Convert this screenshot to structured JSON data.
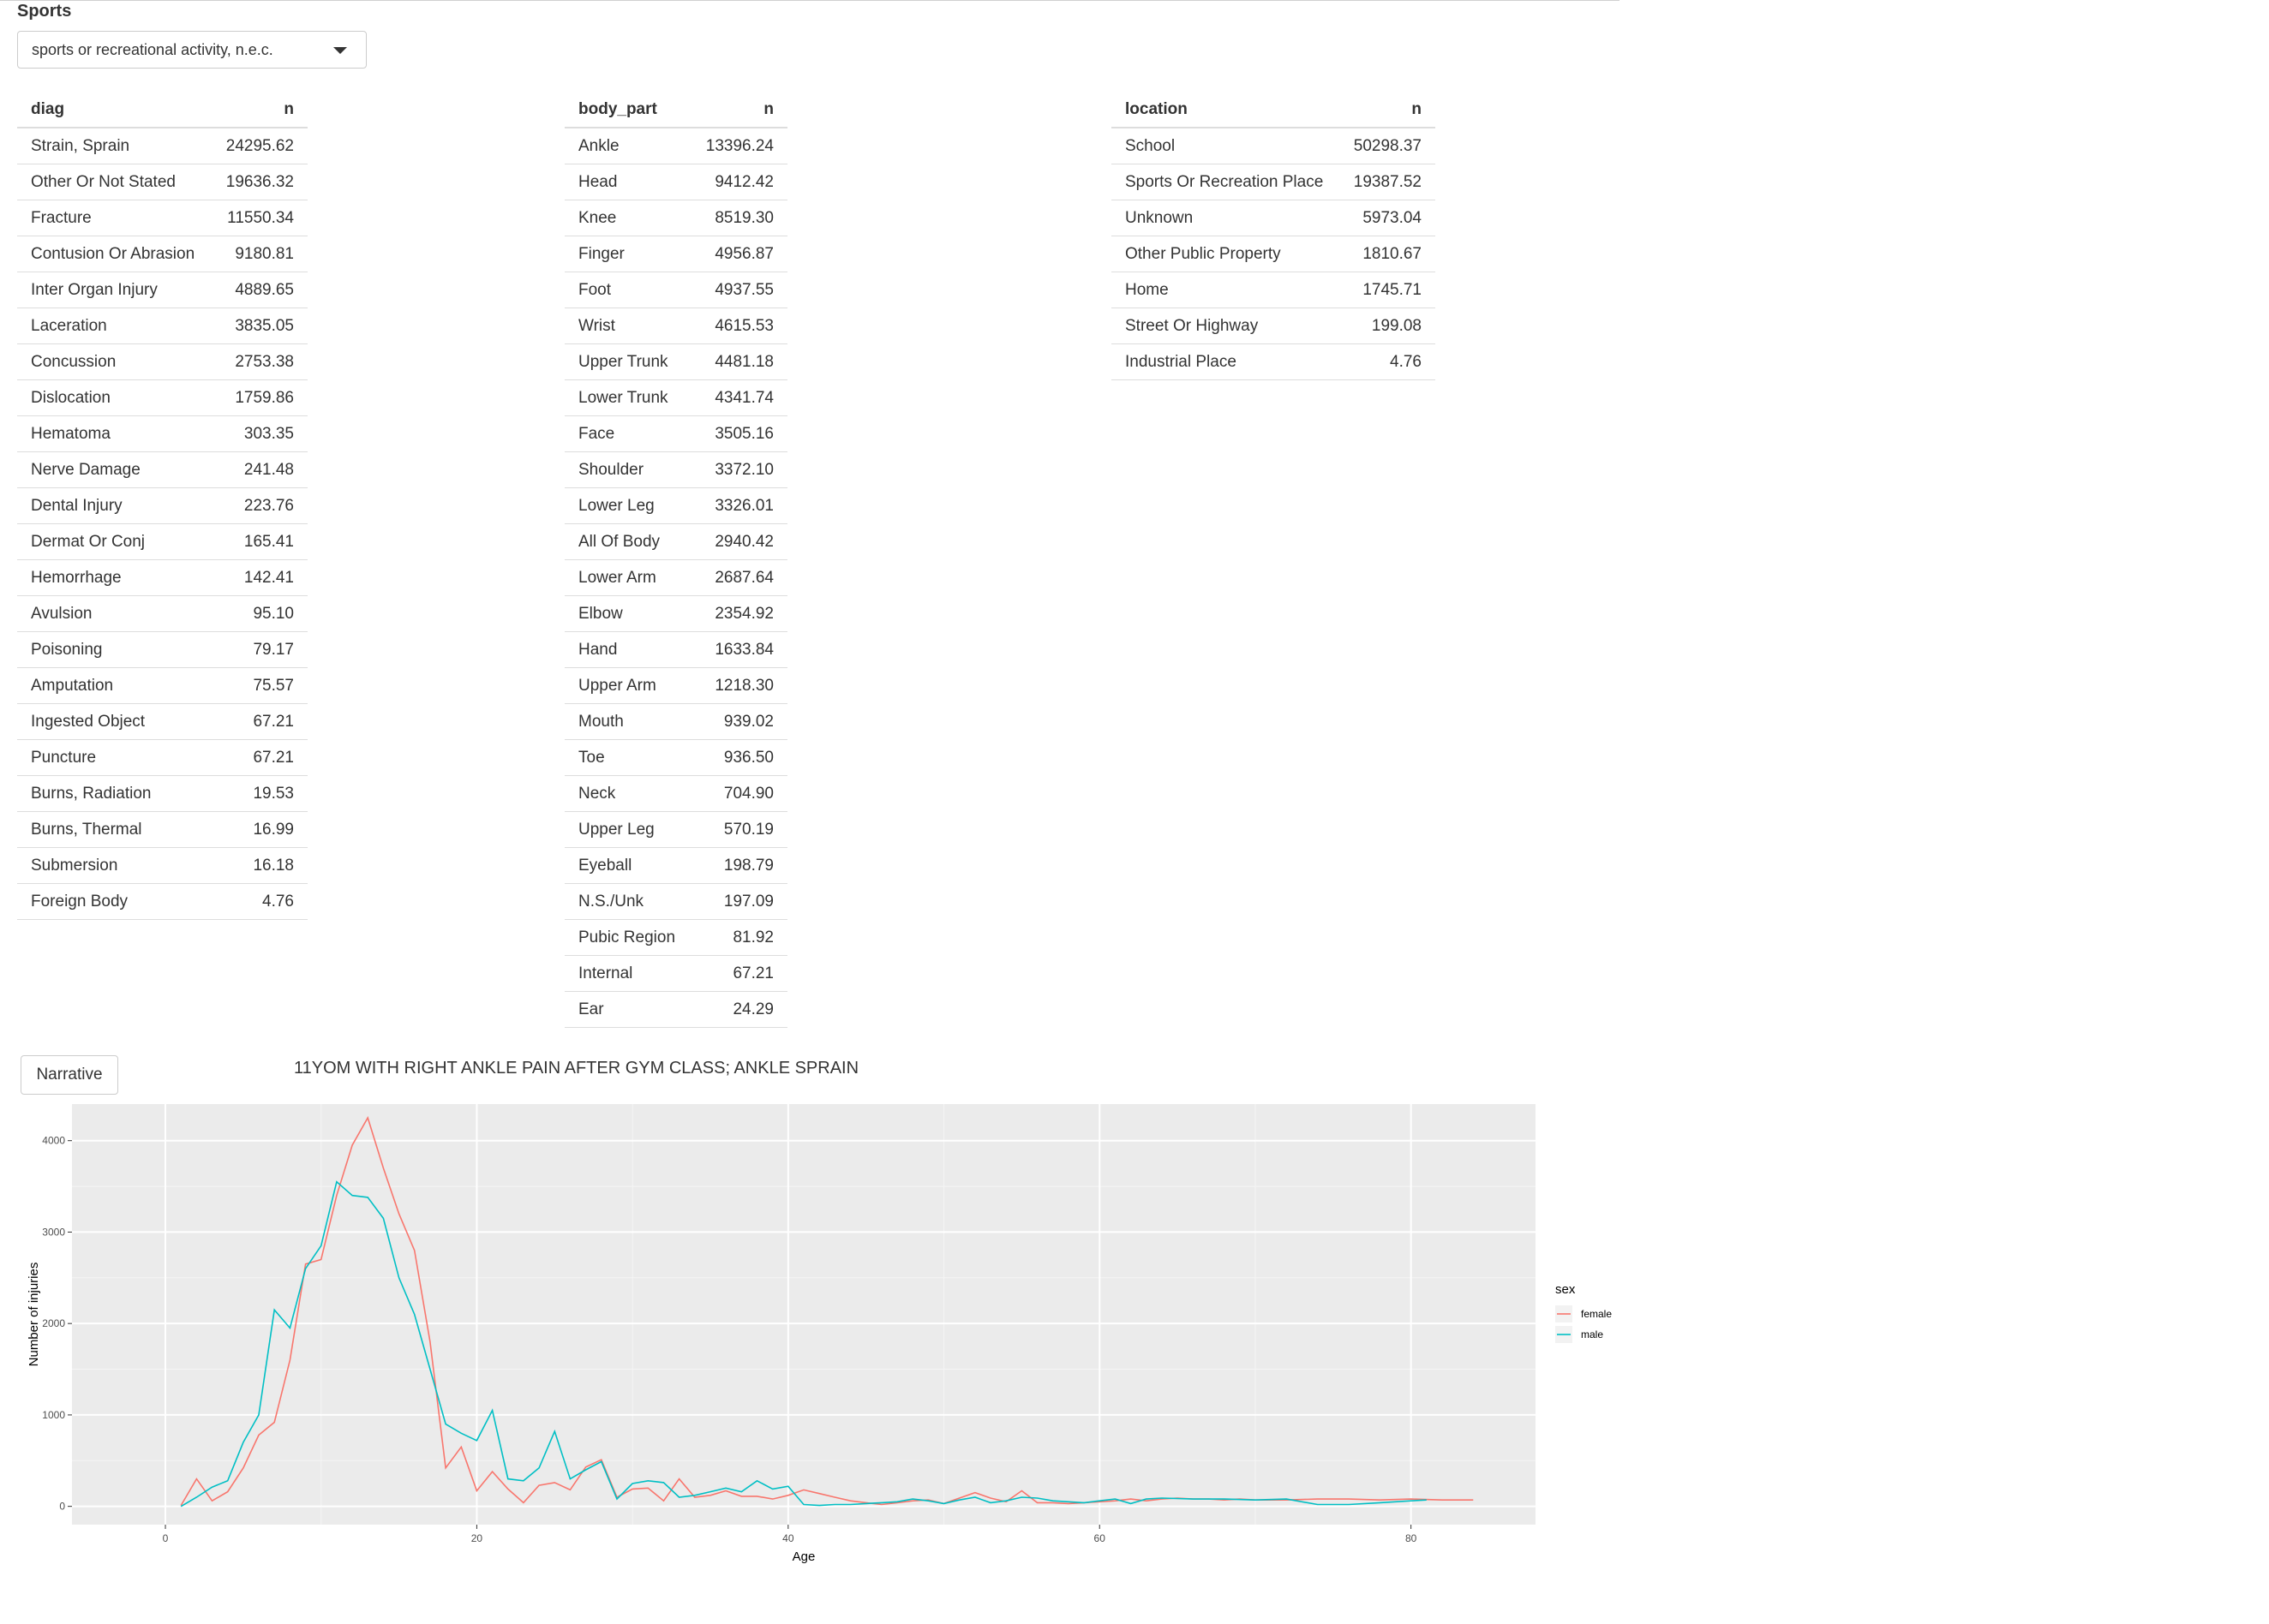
{
  "app": {
    "title": "Sports"
  },
  "selector": {
    "value": "sports or recreational activity, n.e.c."
  },
  "tables": {
    "diag": {
      "headers": [
        "diag",
        "n"
      ],
      "rows": [
        [
          "Strain, Sprain",
          "24295.62"
        ],
        [
          "Other Or Not Stated",
          "19636.32"
        ],
        [
          "Fracture",
          "11550.34"
        ],
        [
          "Contusion Or Abrasion",
          "9180.81"
        ],
        [
          "Inter Organ Injury",
          "4889.65"
        ],
        [
          "Laceration",
          "3835.05"
        ],
        [
          "Concussion",
          "2753.38"
        ],
        [
          "Dislocation",
          "1759.86"
        ],
        [
          "Hematoma",
          "303.35"
        ],
        [
          "Nerve Damage",
          "241.48"
        ],
        [
          "Dental Injury",
          "223.76"
        ],
        [
          "Dermat Or Conj",
          "165.41"
        ],
        [
          "Hemorrhage",
          "142.41"
        ],
        [
          "Avulsion",
          "95.10"
        ],
        [
          "Poisoning",
          "79.17"
        ],
        [
          "Amputation",
          "75.57"
        ],
        [
          "Ingested Object",
          "67.21"
        ],
        [
          "Puncture",
          "67.21"
        ],
        [
          "Burns, Radiation",
          "19.53"
        ],
        [
          "Burns, Thermal",
          "16.99"
        ],
        [
          "Submersion",
          "16.18"
        ],
        [
          "Foreign Body",
          "4.76"
        ]
      ]
    },
    "body_part": {
      "headers": [
        "body_part",
        "n"
      ],
      "rows": [
        [
          "Ankle",
          "13396.24"
        ],
        [
          "Head",
          "9412.42"
        ],
        [
          "Knee",
          "8519.30"
        ],
        [
          "Finger",
          "4956.87"
        ],
        [
          "Foot",
          "4937.55"
        ],
        [
          "Wrist",
          "4615.53"
        ],
        [
          "Upper Trunk",
          "4481.18"
        ],
        [
          "Lower Trunk",
          "4341.74"
        ],
        [
          "Face",
          "3505.16"
        ],
        [
          "Shoulder",
          "3372.10"
        ],
        [
          "Lower Leg",
          "3326.01"
        ],
        [
          "All Of Body",
          "2940.42"
        ],
        [
          "Lower Arm",
          "2687.64"
        ],
        [
          "Elbow",
          "2354.92"
        ],
        [
          "Hand",
          "1633.84"
        ],
        [
          "Upper Arm",
          "1218.30"
        ],
        [
          "Mouth",
          "939.02"
        ],
        [
          "Toe",
          "936.50"
        ],
        [
          "Neck",
          "704.90"
        ],
        [
          "Upper Leg",
          "570.19"
        ],
        [
          "Eyeball",
          "198.79"
        ],
        [
          "N.S./Unk",
          "197.09"
        ],
        [
          "Pubic Region",
          "81.92"
        ],
        [
          "Internal",
          "67.21"
        ],
        [
          "Ear",
          "24.29"
        ]
      ]
    },
    "location": {
      "headers": [
        "location",
        "n"
      ],
      "rows": [
        [
          "School",
          "50298.37"
        ],
        [
          "Sports Or Recreation Place",
          "19387.52"
        ],
        [
          "Unknown",
          "5973.04"
        ],
        [
          "Other Public Property",
          "1810.67"
        ],
        [
          "Home",
          "1745.71"
        ],
        [
          "Street Or Highway",
          "199.08"
        ],
        [
          "Industrial Place",
          "4.76"
        ]
      ]
    }
  },
  "narrative": {
    "button_label": "Narrative",
    "text": "11YOM WITH RIGHT ANKLE PAIN AFTER GYM CLASS; ANKLE SPRAIN"
  },
  "chart_data": {
    "type": "line",
    "title": "",
    "xlabel": "Age",
    "ylabel": "Number of injuries",
    "xlim": [
      -6,
      88
    ],
    "ylim": [
      -200,
      4400
    ],
    "xticks": [
      0,
      20,
      40,
      60,
      80
    ],
    "yticks": [
      0,
      1000,
      2000,
      3000,
      4000
    ],
    "grid": true,
    "legend": {
      "title": "sex",
      "position": "right"
    },
    "series": [
      {
        "name": "female",
        "color": "#F8766D",
        "points": [
          [
            1,
            10
          ],
          [
            2,
            300
          ],
          [
            3,
            60
          ],
          [
            4,
            160
          ],
          [
            5,
            420
          ],
          [
            6,
            780
          ],
          [
            7,
            920
          ],
          [
            8,
            1600
          ],
          [
            9,
            2650
          ],
          [
            10,
            2700
          ],
          [
            11,
            3400
          ],
          [
            12,
            3950
          ],
          [
            13,
            4250
          ],
          [
            14,
            3700
          ],
          [
            15,
            3200
          ],
          [
            16,
            2800
          ],
          [
            17,
            1800
          ],
          [
            18,
            420
          ],
          [
            19,
            650
          ],
          [
            20,
            170
          ],
          [
            21,
            380
          ],
          [
            22,
            190
          ],
          [
            23,
            40
          ],
          [
            24,
            230
          ],
          [
            25,
            260
          ],
          [
            26,
            180
          ],
          [
            27,
            430
          ],
          [
            28,
            510
          ],
          [
            29,
            100
          ],
          [
            30,
            190
          ],
          [
            31,
            200
          ],
          [
            32,
            60
          ],
          [
            33,
            300
          ],
          [
            34,
            100
          ],
          [
            35,
            120
          ],
          [
            36,
            170
          ],
          [
            37,
            110
          ],
          [
            38,
            110
          ],
          [
            39,
            80
          ],
          [
            40,
            120
          ],
          [
            41,
            180
          ],
          [
            42,
            140
          ],
          [
            43,
            100
          ],
          [
            44,
            60
          ],
          [
            45,
            40
          ],
          [
            46,
            20
          ],
          [
            47,
            40
          ],
          [
            48,
            60
          ],
          [
            49,
            70
          ],
          [
            50,
            30
          ],
          [
            51,
            90
          ],
          [
            52,
            150
          ],
          [
            53,
            90
          ],
          [
            54,
            50
          ],
          [
            55,
            170
          ],
          [
            56,
            40
          ],
          [
            57,
            40
          ],
          [
            58,
            30
          ],
          [
            59,
            40
          ],
          [
            60,
            50
          ],
          [
            61,
            60
          ],
          [
            62,
            80
          ],
          [
            63,
            60
          ],
          [
            64,
            80
          ],
          [
            65,
            90
          ],
          [
            66,
            80
          ],
          [
            67,
            80
          ],
          [
            68,
            70
          ],
          [
            69,
            80
          ],
          [
            70,
            70
          ],
          [
            72,
            70
          ],
          [
            74,
            80
          ],
          [
            76,
            80
          ],
          [
            78,
            70
          ],
          [
            80,
            80
          ],
          [
            82,
            70
          ],
          [
            84,
            70
          ]
        ]
      },
      {
        "name": "male",
        "color": "#00BFC4",
        "points": [
          [
            1,
            0
          ],
          [
            2,
            100
          ],
          [
            3,
            210
          ],
          [
            4,
            280
          ],
          [
            5,
            700
          ],
          [
            6,
            1000
          ],
          [
            7,
            2150
          ],
          [
            8,
            1950
          ],
          [
            9,
            2600
          ],
          [
            10,
            2850
          ],
          [
            11,
            3550
          ],
          [
            12,
            3400
          ],
          [
            13,
            3380
          ],
          [
            14,
            3150
          ],
          [
            15,
            2500
          ],
          [
            16,
            2100
          ],
          [
            17,
            1500
          ],
          [
            18,
            900
          ],
          [
            19,
            800
          ],
          [
            20,
            720
          ],
          [
            21,
            1050
          ],
          [
            22,
            300
          ],
          [
            23,
            280
          ],
          [
            24,
            420
          ],
          [
            25,
            820
          ],
          [
            26,
            300
          ],
          [
            27,
            400
          ],
          [
            28,
            490
          ],
          [
            29,
            80
          ],
          [
            30,
            250
          ],
          [
            31,
            280
          ],
          [
            32,
            260
          ],
          [
            33,
            100
          ],
          [
            34,
            120
          ],
          [
            35,
            160
          ],
          [
            36,
            200
          ],
          [
            37,
            160
          ],
          [
            38,
            280
          ],
          [
            39,
            190
          ],
          [
            40,
            220
          ],
          [
            41,
            20
          ],
          [
            42,
            10
          ],
          [
            43,
            20
          ],
          [
            44,
            20
          ],
          [
            45,
            30
          ],
          [
            46,
            40
          ],
          [
            47,
            50
          ],
          [
            48,
            80
          ],
          [
            49,
            60
          ],
          [
            50,
            30
          ],
          [
            51,
            70
          ],
          [
            52,
            100
          ],
          [
            53,
            40
          ],
          [
            54,
            60
          ],
          [
            55,
            100
          ],
          [
            56,
            90
          ],
          [
            57,
            60
          ],
          [
            58,
            50
          ],
          [
            59,
            40
          ],
          [
            60,
            60
          ],
          [
            61,
            80
          ],
          [
            62,
            30
          ],
          [
            63,
            80
          ],
          [
            64,
            90
          ],
          [
            66,
            80
          ],
          [
            68,
            80
          ],
          [
            70,
            70
          ],
          [
            72,
            80
          ],
          [
            74,
            20
          ],
          [
            76,
            20
          ],
          [
            78,
            40
          ],
          [
            80,
            60
          ],
          [
            81,
            70
          ]
        ]
      }
    ]
  }
}
